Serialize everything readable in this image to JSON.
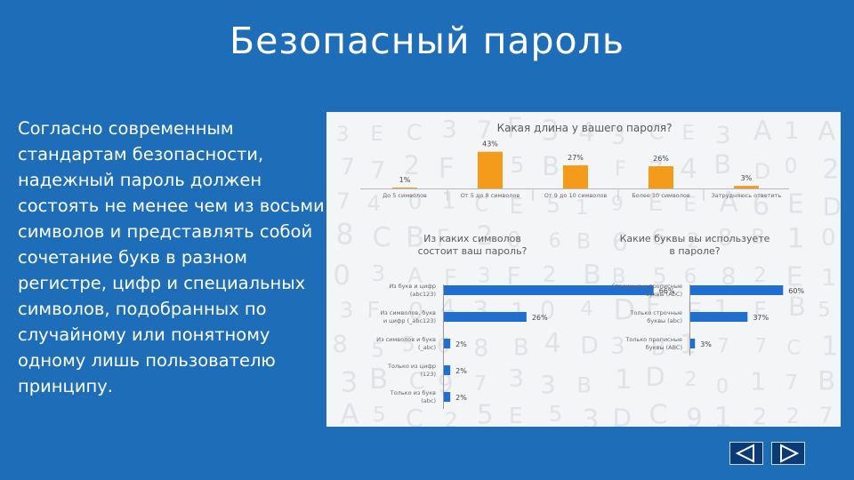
{
  "slide": {
    "title": "Безопасный пароль",
    "body": "Согласно современным стандартам безопасности, надежный пароль должен состоять не менее чем из восьми символов и представлять собой сочетание букв в разном регистре, цифр и специальных символов, подобранных по случайному или понятному одному лишь пользователю принципу."
  },
  "colors": {
    "background": "#1e6db9",
    "bar_orange": "#f59b1c",
    "bar_blue": "#1f6fd1",
    "nav_button": "#0b3a78"
  },
  "navigation": {
    "prev_icon": "triangle-left-icon",
    "next_icon": "triangle-right-icon"
  },
  "chart_data": [
    {
      "type": "bar",
      "title": "Какая длина у вашего пароля?",
      "categories": [
        "До 5 символов",
        "От 5 до 8 символов",
        "От 9 до 10 символов",
        "Более 10 символов",
        "Затрудняюсь ответить"
      ],
      "values": [
        1,
        43,
        27,
        26,
        3
      ],
      "value_labels": [
        "1%",
        "43%",
        "27%",
        "26%",
        "3%"
      ],
      "ylim": [
        0,
        50
      ],
      "color": "#f59b1c"
    },
    {
      "type": "bar",
      "orientation": "horizontal",
      "title": [
        "Из каких символов",
        "состоит ваш пароль?"
      ],
      "categories": [
        [
          "Из букв и цифр",
          "(abc123)"
        ],
        [
          "Из символов, букв",
          "и цифр (_abc123)"
        ],
        [
          "Из символов и букв",
          "(_abc)"
        ],
        [
          "Только из цифр",
          "(123)"
        ],
        [
          "Только из букв",
          "(abc)"
        ]
      ],
      "values": [
        66,
        26,
        2,
        2,
        2
      ],
      "value_labels": [
        "66%",
        "26%",
        "2%",
        "2%",
        "2%"
      ],
      "xlim": [
        0,
        70
      ],
      "color": "#1f6fd1"
    },
    {
      "type": "bar",
      "orientation": "horizontal",
      "title": [
        "Какие буквы вы используете",
        "в пароле?"
      ],
      "categories": [
        [
          "Строчные и прописные",
          "буквы (AbC)"
        ],
        [
          "Только строчные",
          "буквы (abc)"
        ],
        [
          "Только прописные",
          "буквы (ABC)"
        ]
      ],
      "values": [
        60,
        37,
        3
      ],
      "value_labels": [
        "60%",
        "37%",
        "3%"
      ],
      "xlim": [
        0,
        65
      ],
      "color": "#1f6fd1"
    }
  ]
}
